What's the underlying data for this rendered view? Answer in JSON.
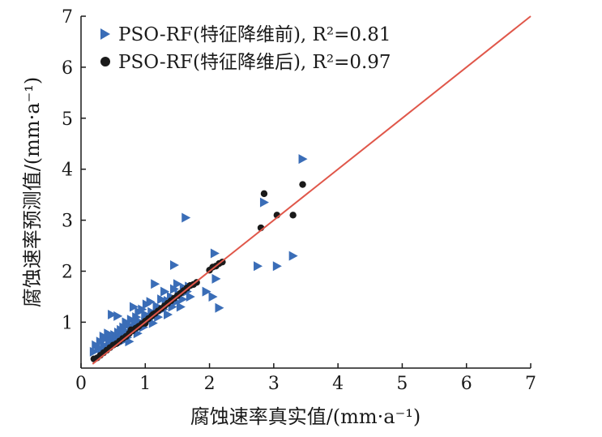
{
  "chart_data": {
    "type": "scatter",
    "xlabel": "腐蚀速率真实值/(mm·a⁻¹)",
    "ylabel": "腐蚀速率预测值/(mm·a⁻¹)",
    "xlim": [
      0,
      7
    ],
    "ylim": [
      0.1,
      7
    ],
    "xticks": [
      "0",
      "1",
      "2",
      "3",
      "4",
      "5",
      "6",
      "7"
    ],
    "yticks": [
      "1",
      "2",
      "3",
      "4",
      "5",
      "6",
      "7"
    ],
    "legend_position": "top-left",
    "fit_line": {
      "x": [
        0.18,
        7
      ],
      "y": [
        0.18,
        7
      ],
      "color": "#e0574a"
    },
    "series": [
      {
        "name": "PSO-RF(特征降维前), R²=0.81",
        "marker": "triangle-right",
        "color": "#3a6db7",
        "points": [
          [
            0.2,
            0.42
          ],
          [
            0.23,
            0.55
          ],
          [
            0.27,
            0.5
          ],
          [
            0.3,
            0.62
          ],
          [
            0.32,
            0.45
          ],
          [
            0.35,
            0.72
          ],
          [
            0.36,
            0.55
          ],
          [
            0.38,
            0.68
          ],
          [
            0.4,
            0.5
          ],
          [
            0.42,
            0.78
          ],
          [
            0.44,
            0.6
          ],
          [
            0.46,
            0.7
          ],
          [
            0.48,
            1.15
          ],
          [
            0.5,
            0.62
          ],
          [
            0.52,
            0.75
          ],
          [
            0.55,
            0.68
          ],
          [
            0.57,
            1.12
          ],
          [
            0.58,
            0.8
          ],
          [
            0.6,
            0.72
          ],
          [
            0.62,
            0.85
          ],
          [
            0.64,
            0.62
          ],
          [
            0.66,
            0.9
          ],
          [
            0.68,
            0.78
          ],
          [
            0.7,
            1.0
          ],
          [
            0.72,
            0.7
          ],
          [
            0.74,
            0.95
          ],
          [
            0.75,
            0.62
          ],
          [
            0.78,
            1.05
          ],
          [
            0.8,
            0.85
          ],
          [
            0.82,
            1.3
          ],
          [
            0.84,
            0.95
          ],
          [
            0.86,
            1.1
          ],
          [
            0.88,
            0.78
          ],
          [
            0.9,
            1.2
          ],
          [
            0.92,
            1.0
          ],
          [
            0.95,
            1.25
          ],
          [
            0.97,
            0.9
          ],
          [
            1.0,
            1.15
          ],
          [
            1.02,
            1.35
          ],
          [
            1.05,
            1.05
          ],
          [
            1.08,
            1.4
          ],
          [
            1.1,
            1.2
          ],
          [
            1.12,
            0.98
          ],
          [
            1.15,
            1.75
          ],
          [
            1.18,
            1.3
          ],
          [
            1.2,
            1.1
          ],
          [
            1.25,
            1.45
          ],
          [
            1.28,
            1.25
          ],
          [
            1.3,
            1.6
          ],
          [
            1.32,
            1.35
          ],
          [
            1.35,
            1.15
          ],
          [
            1.4,
            1.5
          ],
          [
            1.42,
            1.3
          ],
          [
            1.45,
            1.65
          ],
          [
            1.48,
            1.4
          ],
          [
            1.5,
            1.75
          ],
          [
            1.52,
            1.55
          ],
          [
            1.55,
            1.3
          ],
          [
            1.58,
            1.45
          ],
          [
            1.6,
            1.68
          ],
          [
            1.63,
            3.05
          ],
          [
            1.65,
            1.6
          ],
          [
            1.68,
            1.7
          ],
          [
            1.7,
            1.5
          ],
          [
            1.45,
            2.12
          ],
          [
            1.95,
            1.6
          ],
          [
            2.05,
            1.5
          ],
          [
            2.1,
            1.85
          ],
          [
            2.15,
            1.28
          ],
          [
            2.08,
            2.35
          ],
          [
            2.75,
            2.1
          ],
          [
            2.85,
            3.35
          ],
          [
            3.05,
            2.1
          ],
          [
            3.3,
            2.3
          ],
          [
            3.45,
            4.2
          ],
          [
            0.45,
            0.62
          ],
          [
            0.55,
            0.58
          ],
          [
            0.65,
            0.7
          ],
          [
            0.85,
            0.88
          ],
          [
            0.95,
            0.98
          ],
          [
            1.05,
            1.12
          ],
          [
            1.2,
            1.3
          ],
          [
            1.35,
            1.42
          ],
          [
            0.38,
            0.5
          ],
          [
            0.6,
            0.66
          ],
          [
            0.7,
            0.82
          ],
          [
            0.78,
            0.85
          ],
          [
            0.88,
            1.02
          ],
          [
            1.0,
            1.0
          ],
          [
            1.12,
            1.18
          ]
        ]
      },
      {
        "name": "PSO-RF(特征降维后), R²=0.97",
        "marker": "circle",
        "color": "#1a1a1a",
        "points": [
          [
            0.2,
            0.28
          ],
          [
            0.25,
            0.3
          ],
          [
            0.3,
            0.35
          ],
          [
            0.35,
            0.4
          ],
          [
            0.4,
            0.45
          ],
          [
            0.45,
            0.5
          ],
          [
            0.5,
            0.55
          ],
          [
            0.55,
            0.58
          ],
          [
            0.6,
            0.63
          ],
          [
            0.65,
            0.68
          ],
          [
            0.7,
            0.72
          ],
          [
            0.75,
            0.78
          ],
          [
            0.8,
            0.83
          ],
          [
            0.85,
            0.88
          ],
          [
            0.9,
            0.92
          ],
          [
            0.95,
            0.97
          ],
          [
            1.0,
            1.02
          ],
          [
            1.05,
            1.07
          ],
          [
            1.1,
            1.12
          ],
          [
            1.15,
            1.17
          ],
          [
            1.2,
            1.22
          ],
          [
            1.25,
            1.27
          ],
          [
            1.3,
            1.32
          ],
          [
            1.35,
            1.37
          ],
          [
            1.4,
            1.42
          ],
          [
            1.45,
            1.47
          ],
          [
            1.5,
            1.52
          ],
          [
            1.55,
            1.57
          ],
          [
            1.6,
            1.62
          ],
          [
            1.65,
            1.67
          ],
          [
            1.7,
            1.72
          ],
          [
            1.75,
            1.74
          ],
          [
            1.8,
            1.78
          ],
          [
            2.0,
            2.02
          ],
          [
            2.05,
            2.08
          ],
          [
            2.1,
            2.1
          ],
          [
            2.15,
            2.15
          ],
          [
            2.2,
            2.18
          ],
          [
            2.8,
            2.85
          ],
          [
            2.85,
            3.52
          ],
          [
            3.05,
            3.1
          ],
          [
            3.3,
            3.1
          ],
          [
            3.45,
            3.7
          ],
          [
            0.78,
            0.85
          ],
          [
            0.88,
            0.9
          ],
          [
            1.0,
            0.98
          ],
          [
            1.12,
            1.15
          ]
        ]
      }
    ]
  }
}
